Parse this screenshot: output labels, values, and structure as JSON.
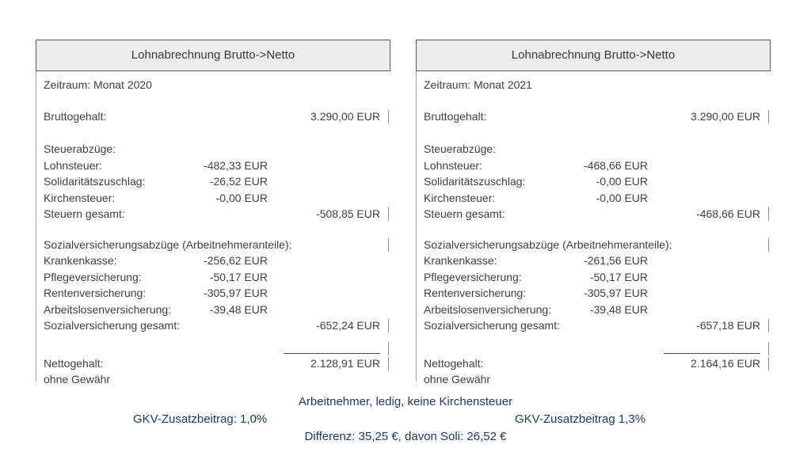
{
  "colors": {
    "header_fill": "#ececec",
    "header_border": "#595959",
    "body_border": "#a3a3a3",
    "body_text": "#3f3f3f",
    "footer_text": "#1f3864"
  },
  "panels": [
    {
      "title": "Lohnabrechnung Brutto->Netto",
      "zeitraum": "Zeitraum: Monat 2020",
      "bruttogehalt_label": "Bruttogehalt:",
      "bruttogehalt_value": "3.290,00 EUR",
      "steuer_header": "Steuerabzüge:",
      "steuer_rows": [
        {
          "label": "Lohnsteuer:",
          "value": "-482,33 EUR"
        },
        {
          "label": "Solidaritätszuschlag:",
          "value": "-26,52 EUR"
        },
        {
          "label": "Kirchensteuer:",
          "value": "-0,00 EUR"
        }
      ],
      "steuern_gesamt_label": "Steuern gesamt:",
      "steuern_gesamt_value": "-508,85 EUR",
      "sozial_header": "Sozialversicherungsabzüge (Arbeitnehmeranteile):",
      "sozial_rows": [
        {
          "label": "Krankenkasse:",
          "value": "-256,62 EUR"
        },
        {
          "label": "Pflegeversicherung:",
          "value": "-50,17 EUR"
        },
        {
          "label": "Rentenversicherung:",
          "value": "-305,97 EUR"
        },
        {
          "label": "Arbeitslosenversicherung:",
          "value": "-39,48 EUR"
        }
      ],
      "sozial_gesamt_label": "Sozialversicherung gesamt:",
      "sozial_gesamt_value": "-652,24 EUR",
      "netto_label": "Nettogehalt:",
      "netto_value": "2.128,91 EUR",
      "disclaimer": "ohne Gewähr"
    },
    {
      "title": "Lohnabrechnung Brutto->Netto",
      "zeitraum": "Zeitraum: Monat 2021",
      "bruttogehalt_label": "Bruttogehalt:",
      "bruttogehalt_value": "3.290,00 EUR",
      "steuer_header": "Steuerabzüge:",
      "steuer_rows": [
        {
          "label": "Lohnsteuer:",
          "value": "-468,66 EUR"
        },
        {
          "label": "Solidaritätszuschlag:",
          "value": "-0,00 EUR"
        },
        {
          "label": "Kirchensteuer:",
          "value": "-0,00 EUR"
        }
      ],
      "steuern_gesamt_label": "Steuern gesamt:",
      "steuern_gesamt_value": "-468,66 EUR",
      "sozial_header": "Sozialversicherungsabzüge (Arbeitnehmeranteile):",
      "sozial_rows": [
        {
          "label": "Krankenkasse:",
          "value": "-261,56 EUR"
        },
        {
          "label": "Pflegeversicherung:",
          "value": "-50,17 EUR"
        },
        {
          "label": "Rentenversicherung:",
          "value": "-305,97 EUR"
        },
        {
          "label": "Arbeitslosenversicherung:",
          "value": "-39,48 EUR"
        }
      ],
      "sozial_gesamt_label": "Sozialversicherung gesamt:",
      "sozial_gesamt_value": "-657,18 EUR",
      "netto_label": "Nettogehalt:",
      "netto_value": "2.164,16 EUR",
      "disclaimer": "ohne Gewähr"
    }
  ],
  "footer": {
    "line1": "Arbeitnehmer, ledig, keine Kirchensteuer",
    "gkv_left": "GKV-Zusatzbeitrag: 1,0%",
    "gkv_right": "GKV-Zusatzbeitrag 1,3%",
    "line3": "Differenz: 35,25 €, davon Soli: 26,52 €"
  }
}
